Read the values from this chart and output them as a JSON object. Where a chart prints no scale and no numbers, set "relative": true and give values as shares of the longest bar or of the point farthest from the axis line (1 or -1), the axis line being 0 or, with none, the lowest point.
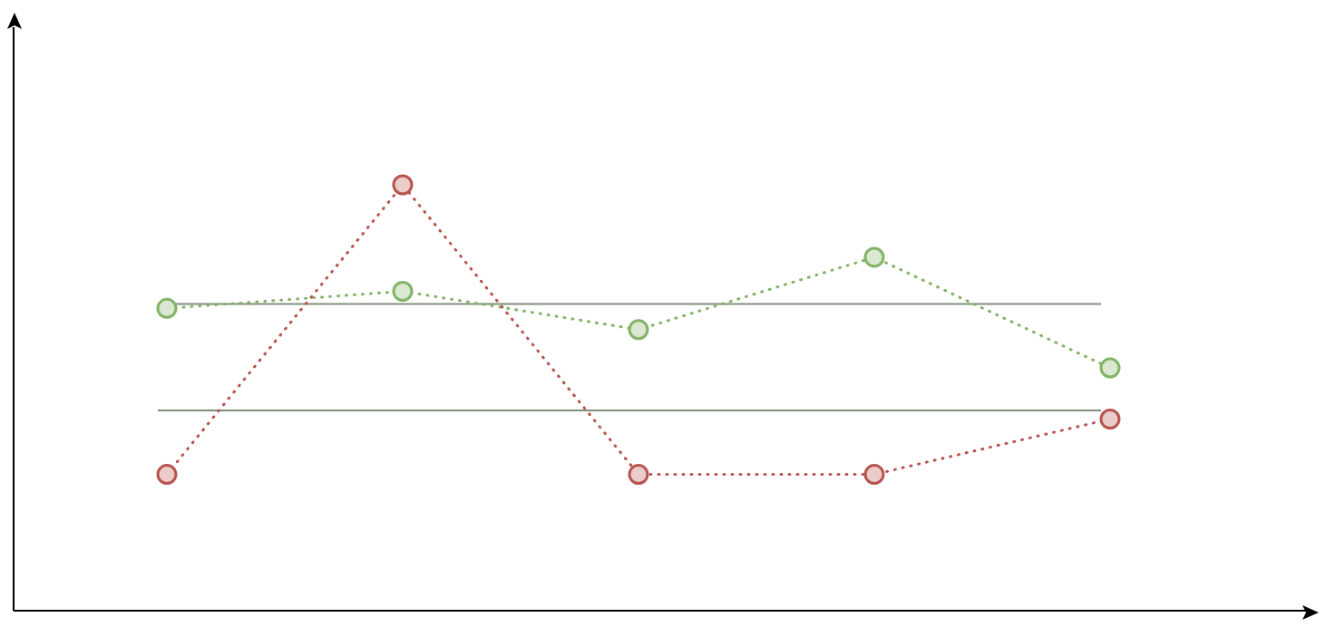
{
  "chart_data": {
    "type": "line",
    "relative": true,
    "categories": [
      null,
      null,
      null,
      null,
      null
    ],
    "series": [
      {
        "color": "#b85450",
        "values": [
          0.32,
          1,
          0.32,
          0.32,
          0.45
        ]
      },
      {
        "color": "#82b366",
        "values": [
          0.71,
          0.75,
          0.66,
          0.83,
          0.57
        ]
      }
    ],
    "ref_lines": [
      {
        "axis": "y",
        "value": 0.72,
        "color": "#7f8f7a"
      },
      {
        "axis": "y",
        "value": 0.47,
        "color": "#7f8f7a"
      }
    ],
    "marker": "circle",
    "line_style": "dotted"
  }
}
